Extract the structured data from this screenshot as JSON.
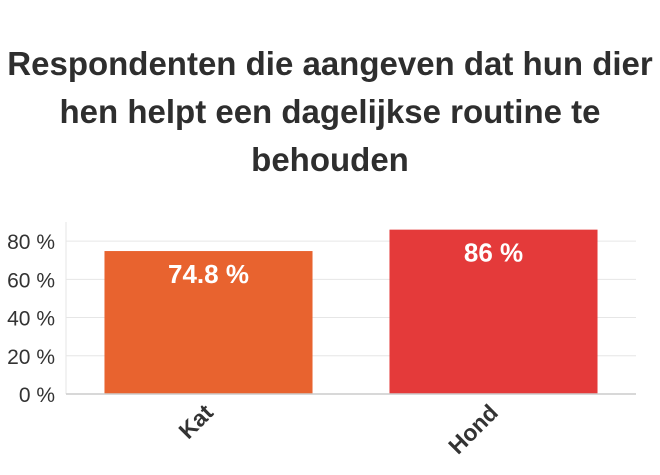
{
  "chart_data": {
    "type": "bar",
    "title_lines": [
      "Respondenten die aangeven dat hun dier",
      "hen helpt een dagelijkse routine te",
      "behouden"
    ],
    "categories": [
      "Kat",
      "Hond"
    ],
    "values": [
      74.8,
      86
    ],
    "value_labels": [
      "74.8 %",
      "86 %"
    ],
    "y_ticks": [
      "0 %",
      "20 %",
      "40 %",
      "60 %",
      "80 %"
    ],
    "y_tick_values": [
      0,
      20,
      40,
      60,
      80
    ],
    "ylim": [
      0,
      90
    ],
    "grid": true,
    "legend": "none",
    "bar_colors": [
      "#e8632f",
      "#e43a3a"
    ],
    "label_color": "#ffffff",
    "axis_text_color": "#333333",
    "grid_color": "#e6e6e6"
  }
}
